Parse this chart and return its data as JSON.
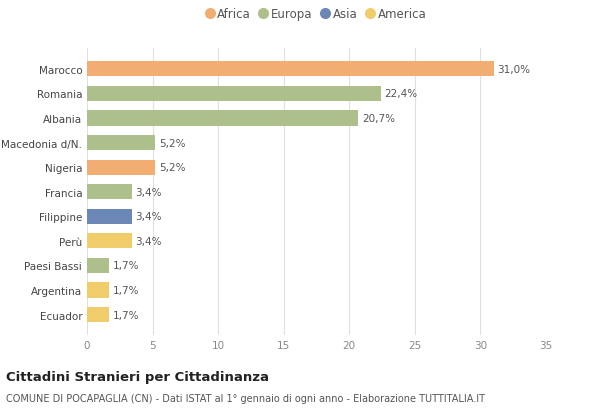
{
  "categories": [
    "Marocco",
    "Romania",
    "Albania",
    "Macedonia d/N.",
    "Nigeria",
    "Francia",
    "Filippine",
    "Perù",
    "Paesi Bassi",
    "Argentina",
    "Ecuador"
  ],
  "values": [
    31.0,
    22.4,
    20.7,
    5.2,
    5.2,
    3.4,
    3.4,
    3.4,
    1.7,
    1.7,
    1.7
  ],
  "labels": [
    "31,0%",
    "22,4%",
    "20,7%",
    "5,2%",
    "5,2%",
    "3,4%",
    "3,4%",
    "3,4%",
    "1,7%",
    "1,7%",
    "1,7%"
  ],
  "colors": [
    "#F2AE72",
    "#ADBF8A",
    "#ADBF8A",
    "#ADBF8A",
    "#F2AE72",
    "#ADBF8A",
    "#6B87B5",
    "#F0CC6A",
    "#ADBF8A",
    "#F0CC6A",
    "#F0CC6A"
  ],
  "continent_labels": [
    "Africa",
    "Europa",
    "Asia",
    "America"
  ],
  "continent_colors": [
    "#F2AE72",
    "#ADBF8A",
    "#6B87B5",
    "#F0CC6A"
  ],
  "title": "Cittadini Stranieri per Cittadinanza",
  "subtitle": "COMUNE DI POCAPAGLIA (CN) - Dati ISTAT al 1° gennaio di ogni anno - Elaborazione TUTTITALIA.IT",
  "xlim": [
    0,
    35
  ],
  "xticks": [
    0,
    5,
    10,
    15,
    20,
    25,
    30,
    35
  ],
  "background_color": "#ffffff",
  "bar_height": 0.62,
  "title_fontsize": 9.5,
  "subtitle_fontsize": 7.0,
  "label_fontsize": 7.5,
  "tick_fontsize": 7.5,
  "legend_fontsize": 8.5
}
